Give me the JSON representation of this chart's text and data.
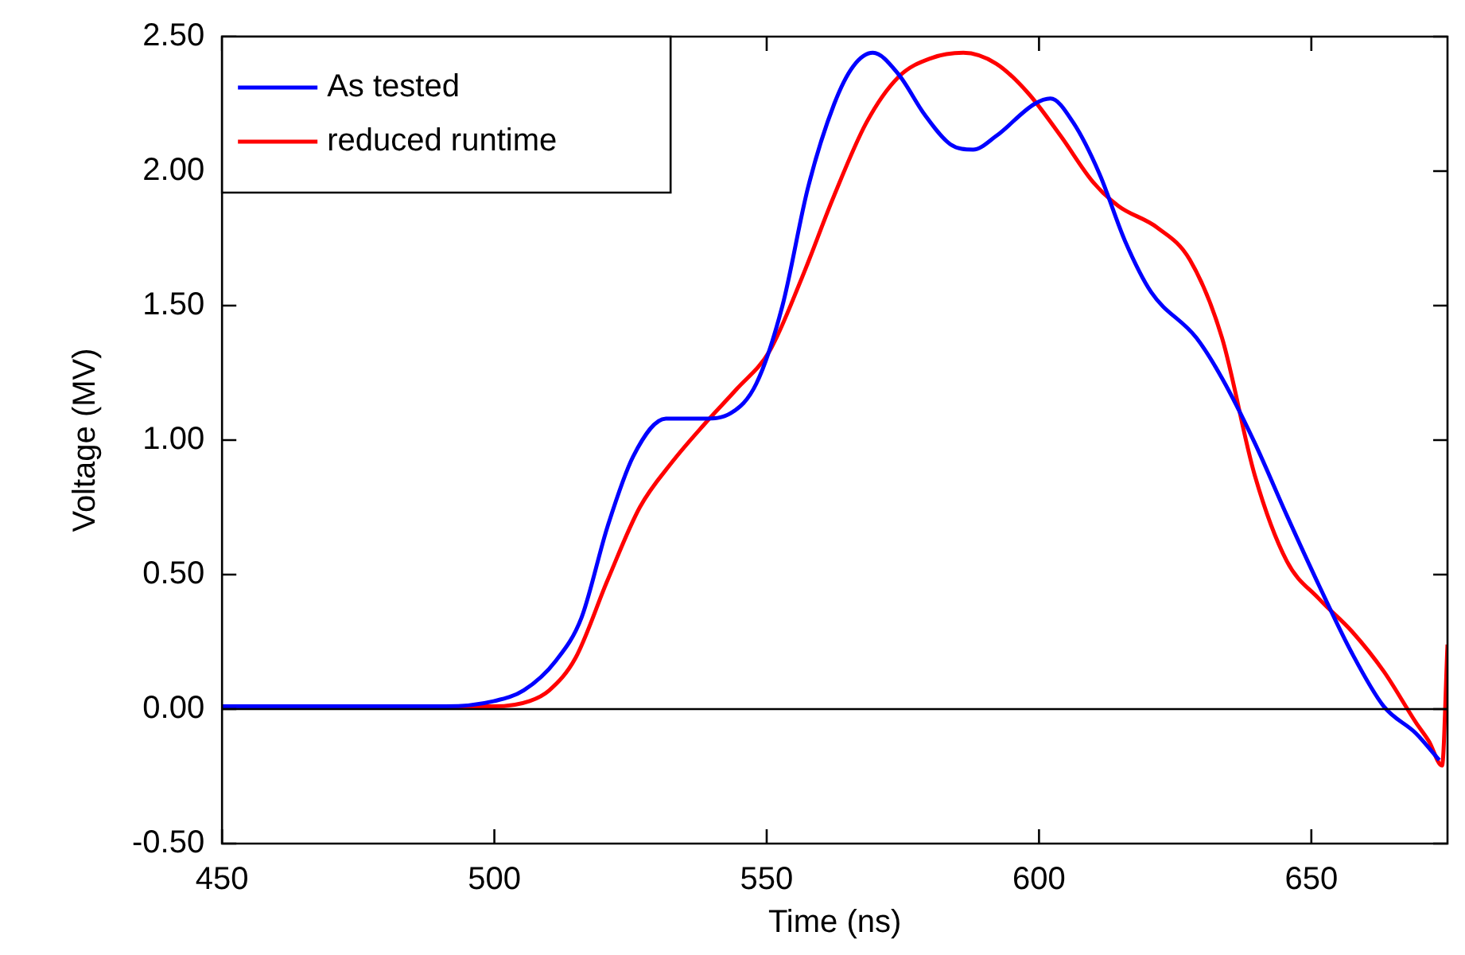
{
  "chart_data": {
    "type": "line",
    "xlabel": "Time (ns)",
    "ylabel": "Voltage (MV)",
    "xlim": [
      450,
      675
    ],
    "xticks": [
      450,
      500,
      550,
      600,
      650
    ],
    "ylim": [
      -0.5,
      2.5
    ],
    "yticks": [
      {
        "value": -0.5,
        "label": "-0.50"
      },
      {
        "value": 0,
        "label": "0.00"
      },
      {
        "value": 0.5,
        "label": "0.50"
      },
      {
        "value": 1,
        "label": "1.00"
      },
      {
        "value": 1.5,
        "label": "1.50"
      },
      {
        "value": 2,
        "label": "2.00"
      },
      {
        "value": 2.5,
        "label": "2.50"
      }
    ],
    "grid": false,
    "legend": "top left",
    "marker": "none",
    "line_style": "solid",
    "ref_lines": [
      {
        "axis": "y",
        "value": 0,
        "color": "#000000"
      }
    ],
    "series": [
      {
        "name": "As tested",
        "color": "#0000ff",
        "x": [
          450,
          491,
          500,
          505.4,
          511.3,
          516,
          520.8,
          525.5,
          531.5,
          538.6,
          543.4,
          548.1,
          552.9,
          557.6,
          562.4,
          565.9,
          569.5,
          574.2,
          579,
          583.7,
          587.9,
          592.1,
          599.2,
          602.1,
          606.3,
          611.1,
          615.8,
          620.6,
          628.9,
          633.6,
          639.6,
          645.5,
          651.4,
          657.4,
          663.3,
          669.2,
          673.5
        ],
        "values": [
          0.01,
          0.01,
          0.03,
          0.07,
          0.18,
          0.34,
          0.68,
          0.94,
          1.08,
          1.08,
          1.1,
          1.21,
          1.5,
          1.94,
          2.25,
          2.39,
          2.44,
          2.36,
          2.21,
          2.1,
          2.08,
          2.13,
          2.25,
          2.27,
          2.18,
          1.99,
          1.74,
          1.55,
          1.38,
          1.23,
          0.99,
          0.72,
          0.46,
          0.21,
          0.01,
          -0.09,
          -0.19
        ]
      },
      {
        "name": "reduced runtime",
        "color": "#ff0000",
        "x": [
          450,
          500,
          506.5,
          510.1,
          514.9,
          520.8,
          526.7,
          532.7,
          538.6,
          544.5,
          550.5,
          556.4,
          562.4,
          568.3,
          574.2,
          580.2,
          586.1,
          592.1,
          598,
          604,
          609.9,
          614.6,
          621.7,
          627.7,
          633.6,
          639.6,
          645.5,
          651.4,
          657.4,
          663.3,
          669.2,
          671.6,
          674,
          675
        ],
        "values": [
          0.01,
          0.01,
          0.03,
          0.07,
          0.19,
          0.48,
          0.75,
          0.92,
          1.06,
          1.19,
          1.33,
          1.6,
          1.91,
          2.18,
          2.35,
          2.42,
          2.44,
          2.4,
          2.29,
          2.13,
          1.96,
          1.87,
          1.79,
          1.67,
          1.38,
          0.87,
          0.55,
          0.41,
          0.29,
          0.14,
          -0.05,
          -0.12,
          -0.21,
          0.24
        ]
      }
    ]
  }
}
